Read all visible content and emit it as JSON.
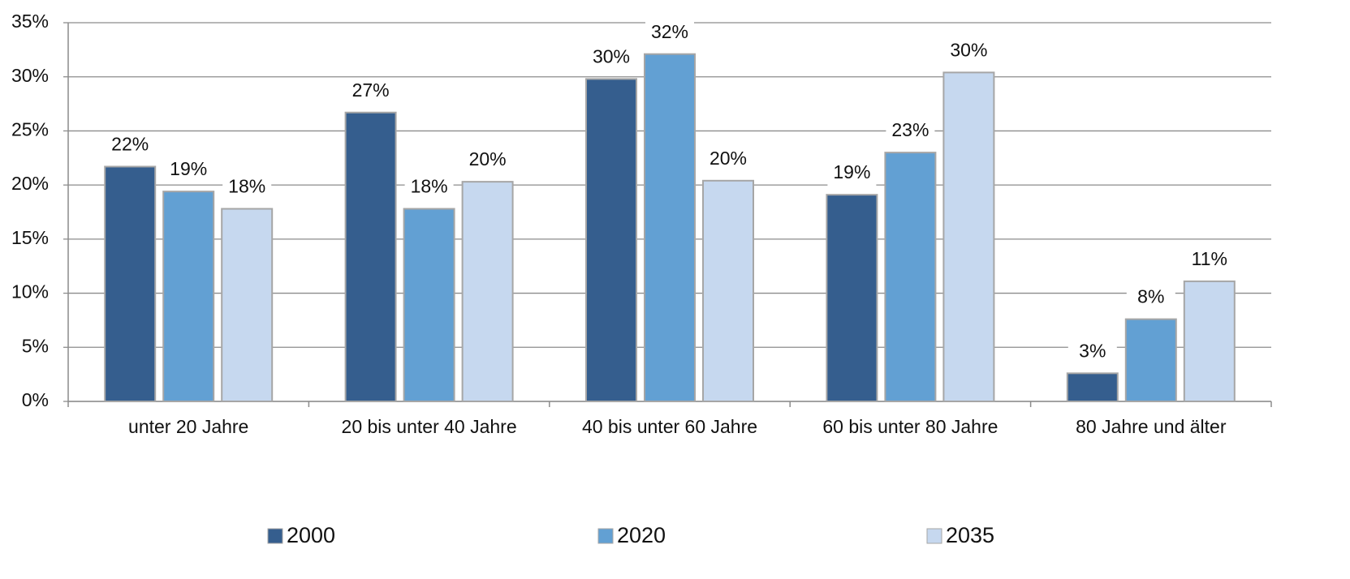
{
  "chart_data": {
    "type": "bar",
    "categories": [
      "unter 20 Jahre",
      "20 bis unter 40 Jahre",
      "40 bis unter 60 Jahre",
      "60 bis unter 80 Jahre",
      "80 Jahre und älter"
    ],
    "series": [
      {
        "name": "2000",
        "color": "#355e8e",
        "values": [
          21.7,
          26.7,
          29.8,
          19.1,
          2.6
        ],
        "value_labels": [
          "22%",
          "27%",
          "30%",
          "19%",
          "3%"
        ]
      },
      {
        "name": "2020",
        "color": "#62a0d3",
        "values": [
          19.4,
          17.8,
          32.1,
          23.0,
          7.6
        ],
        "value_labels": [
          "19%",
          "18%",
          "32%",
          "23%",
          "8%"
        ]
      },
      {
        "name": "2035",
        "color": "#c6d8ef",
        "values": [
          17.8,
          20.3,
          20.4,
          30.4,
          11.1
        ],
        "value_labels": [
          "18%",
          "20%",
          "20%",
          "30%",
          "11%"
        ]
      }
    ],
    "ylim": [
      0,
      35
    ],
    "yticks": [
      {
        "value": 0,
        "label": "0%"
      },
      {
        "value": 5,
        "label": "5%"
      },
      {
        "value": 10,
        "label": "10%"
      },
      {
        "value": 15,
        "label": "15%"
      },
      {
        "value": 20,
        "label": "20%"
      },
      {
        "value": 25,
        "label": "25%"
      },
      {
        "value": 30,
        "label": "30%"
      },
      {
        "value": 35,
        "label": "35%"
      }
    ],
    "grid": true
  }
}
